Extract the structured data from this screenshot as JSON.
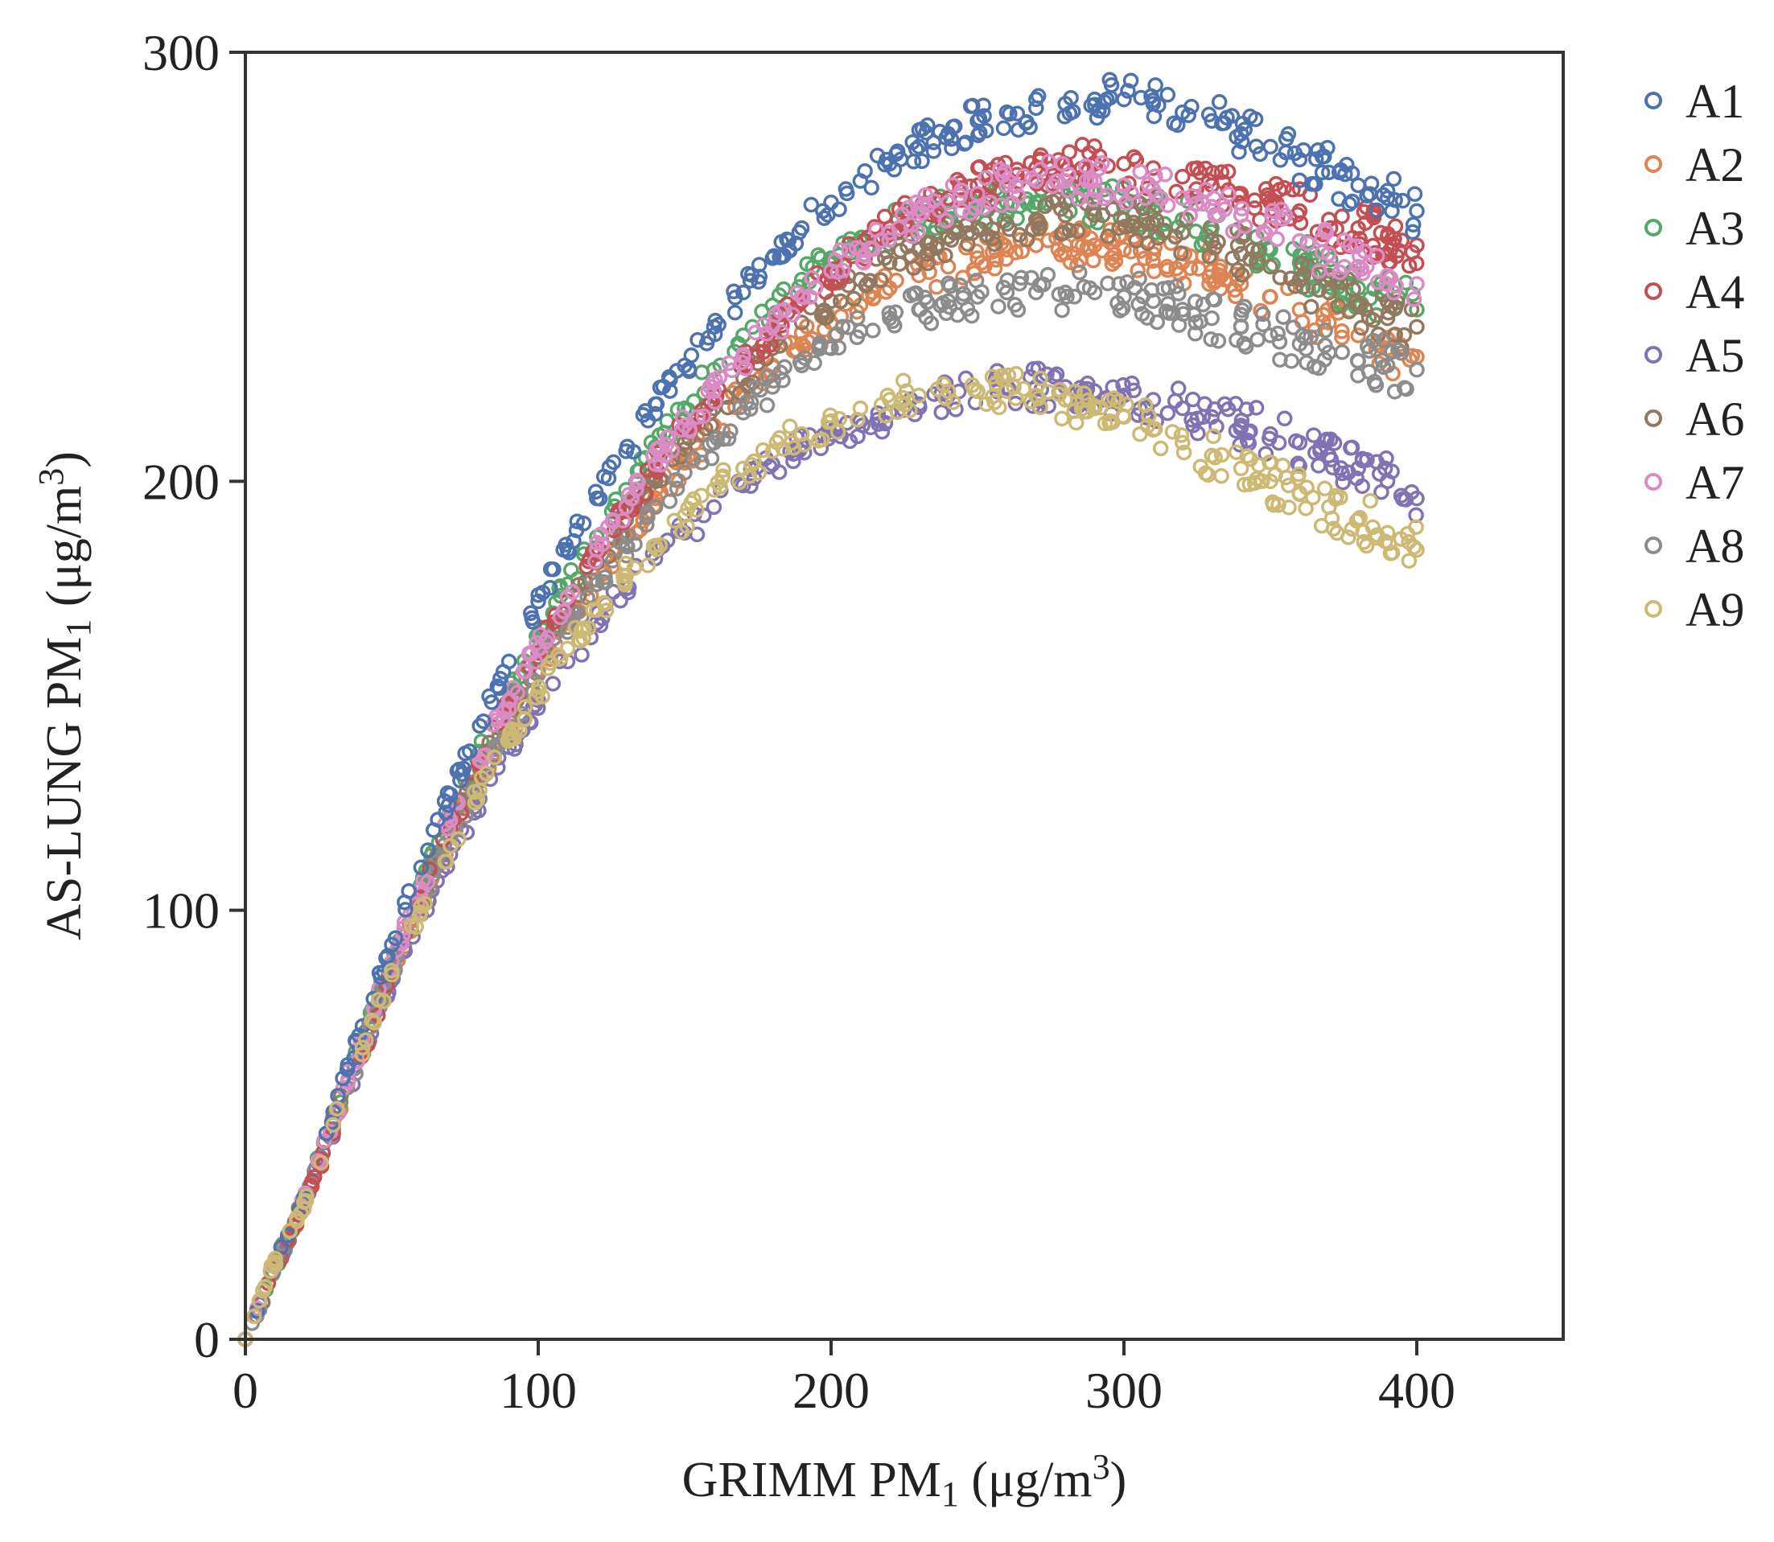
{
  "chart_data": {
    "type": "scatter",
    "title": "",
    "xlabel": {
      "prefix": "GRIMM PM",
      "sub": "1",
      "unit_prefix": " (μg/m",
      "sup": "3",
      "unit_suffix": ")"
    },
    "ylabel": {
      "prefix": "AS-LUNG PM",
      "sub": "1",
      "unit_prefix": " (μg/m",
      "sup": "3",
      "unit_suffix": ")"
    },
    "xlim": [
      0,
      450
    ],
    "ylim": [
      0,
      300
    ],
    "xticks": [
      0,
      100,
      200,
      300,
      400
    ],
    "yticks": [
      0,
      100,
      200,
      300
    ],
    "marker": "open-circle",
    "legend_position": "outside-right",
    "series": [
      {
        "name": "A1",
        "color": "#4c72b0",
        "x": [
          0,
          10,
          20,
          30,
          40,
          50,
          60,
          70,
          80,
          90,
          100,
          110,
          120,
          130,
          140,
          150,
          160,
          170,
          180,
          190,
          200,
          210,
          220,
          230,
          240,
          250,
          260,
          270,
          280,
          290,
          300,
          310,
          320,
          330,
          340,
          350,
          360,
          370,
          380,
          390,
          400
        ],
        "y": [
          0,
          18,
          33,
          53,
          73,
          92,
          110,
          127,
          143,
          158,
          172,
          184,
          196,
          207,
          218,
          227,
          236,
          244,
          252,
          259,
          265,
          270,
          274,
          278,
          281,
          284,
          286,
          287,
          288,
          289,
          289,
          288,
          286,
          284,
          281,
          278,
          275,
          272,
          269,
          266,
          263
        ]
      },
      {
        "name": "A2",
        "color": "#dd8452",
        "x": [
          0,
          10,
          20,
          30,
          40,
          50,
          60,
          70,
          80,
          90,
          100,
          110,
          120,
          130,
          140,
          150,
          160,
          170,
          180,
          190,
          200,
          210,
          220,
          230,
          240,
          250,
          260,
          270,
          280,
          290,
          300,
          310,
          320,
          330,
          340,
          350,
          360,
          370,
          380,
          390,
          400
        ],
        "y": [
          0,
          17,
          32,
          50,
          69,
          86,
          102,
          117,
          131,
          144,
          156,
          167,
          177,
          187,
          196,
          205,
          213,
          220,
          227,
          232,
          237,
          241,
          245,
          248,
          250,
          252,
          254,
          255,
          255,
          255,
          254,
          253,
          251,
          249,
          246,
          243,
          240,
          237,
          234,
          231,
          229
        ]
      },
      {
        "name": "A3",
        "color": "#55a868",
        "x": [
          0,
          10,
          20,
          30,
          40,
          50,
          60,
          70,
          80,
          90,
          100,
          110,
          120,
          130,
          140,
          150,
          160,
          170,
          180,
          190,
          200,
          210,
          220,
          230,
          240,
          250,
          260,
          270,
          280,
          290,
          300,
          310,
          320,
          330,
          340,
          350,
          360,
          370,
          380,
          390,
          400
        ],
        "y": [
          0,
          17,
          32,
          51,
          70,
          88,
          106,
          122,
          137,
          151,
          164,
          176,
          187,
          198,
          208,
          217,
          226,
          234,
          241,
          247,
          252,
          256,
          259,
          261,
          263,
          264,
          265,
          265,
          265,
          265,
          264,
          263,
          261,
          259,
          257,
          254,
          251,
          248,
          245,
          242,
          240
        ]
      },
      {
        "name": "A4",
        "color": "#c44e52",
        "x": [
          0,
          10,
          20,
          30,
          40,
          50,
          60,
          70,
          80,
          90,
          100,
          110,
          120,
          130,
          140,
          150,
          160,
          170,
          180,
          190,
          200,
          210,
          220,
          230,
          240,
          250,
          260,
          270,
          280,
          290,
          300,
          310,
          320,
          330,
          340,
          350,
          360,
          370,
          380,
          390,
          400
        ],
        "y": [
          0,
          17,
          31,
          48,
          67,
          86,
          103,
          119,
          134,
          148,
          160,
          172,
          183,
          193,
          203,
          212,
          220,
          228,
          235,
          242,
          248,
          254,
          259,
          263,
          266,
          269,
          271,
          273,
          274,
          274,
          274,
          273,
          271,
          269,
          267,
          265,
          263,
          261,
          259,
          257,
          255
        ]
      },
      {
        "name": "A5",
        "color": "#8172b3",
        "x": [
          0,
          10,
          20,
          30,
          40,
          50,
          60,
          70,
          80,
          90,
          100,
          110,
          120,
          130,
          140,
          150,
          160,
          170,
          180,
          190,
          200,
          210,
          220,
          230,
          240,
          250,
          260,
          270,
          280,
          290,
          300,
          310,
          320,
          330,
          340,
          350,
          360,
          370,
          380,
          390,
          400
        ],
        "y": [
          0,
          17,
          31,
          49,
          67,
          84,
          99,
          113,
          126,
          138,
          149,
          158,
          167,
          175,
          182,
          188,
          194,
          199,
          204,
          208,
          211,
          214,
          216,
          218,
          220,
          221,
          222,
          222,
          222,
          221,
          220,
          219,
          217,
          215,
          213,
          211,
          209,
          206,
          203,
          200,
          196
        ]
      },
      {
        "name": "A6",
        "color": "#937860",
        "x": [
          0,
          10,
          20,
          30,
          40,
          50,
          60,
          70,
          80,
          90,
          100,
          110,
          120,
          130,
          140,
          150,
          160,
          170,
          180,
          190,
          200,
          210,
          220,
          230,
          240,
          250,
          260,
          270,
          280,
          290,
          300,
          310,
          320,
          330,
          340,
          350,
          360,
          370,
          380,
          390,
          400
        ],
        "y": [
          0,
          17,
          32,
          50,
          69,
          87,
          103,
          119,
          133,
          147,
          159,
          170,
          181,
          191,
          200,
          209,
          217,
          224,
          231,
          237,
          242,
          247,
          251,
          254,
          257,
          259,
          260,
          261,
          262,
          262,
          261,
          260,
          258,
          256,
          253,
          250,
          247,
          244,
          241,
          238,
          236
        ]
      },
      {
        "name": "A7",
        "color": "#da8bc3",
        "x": [
          0,
          10,
          20,
          30,
          40,
          50,
          60,
          70,
          80,
          90,
          100,
          110,
          120,
          130,
          140,
          150,
          160,
          170,
          180,
          190,
          200,
          210,
          220,
          230,
          240,
          250,
          260,
          270,
          280,
          290,
          300,
          310,
          320,
          330,
          340,
          350,
          360,
          370,
          380,
          390,
          400
        ],
        "y": [
          0,
          17,
          32,
          51,
          70,
          88,
          105,
          121,
          135,
          149,
          161,
          173,
          184,
          194,
          204,
          213,
          221,
          229,
          236,
          243,
          249,
          254,
          258,
          262,
          265,
          267,
          269,
          270,
          270,
          270,
          269,
          268,
          266,
          264,
          262,
          259,
          256,
          253,
          250,
          248,
          246
        ]
      },
      {
        "name": "A8",
        "color": "#8c8c8c",
        "x": [
          0,
          10,
          20,
          30,
          40,
          50,
          60,
          70,
          80,
          90,
          100,
          110,
          120,
          130,
          140,
          150,
          160,
          170,
          180,
          190,
          200,
          210,
          220,
          230,
          240,
          250,
          260,
          270,
          280,
          290,
          300,
          310,
          320,
          330,
          340,
          350,
          360,
          370,
          380,
          390,
          400
        ],
        "y": [
          0,
          17,
          32,
          50,
          68,
          86,
          102,
          117,
          130,
          143,
          155,
          166,
          176,
          185,
          194,
          202,
          209,
          216,
          222,
          227,
          231,
          235,
          238,
          240,
          242,
          243,
          244,
          244,
          244,
          244,
          243,
          242,
          240,
          238,
          236,
          234,
          232,
          230,
          228,
          227,
          226
        ]
      },
      {
        "name": "A9",
        "color": "#ccb974",
        "x": [
          0,
          10,
          20,
          30,
          40,
          50,
          60,
          70,
          80,
          90,
          100,
          110,
          120,
          130,
          140,
          150,
          160,
          170,
          180,
          190,
          200,
          210,
          220,
          230,
          240,
          250,
          260,
          270,
          280,
          290,
          300,
          310,
          320,
          330,
          340,
          350,
          360,
          370,
          380,
          390,
          400
        ],
        "y": [
          0,
          18,
          32,
          50,
          68,
          85,
          101,
          115,
          128,
          140,
          151,
          161,
          170,
          178,
          185,
          192,
          198,
          203,
          207,
          211,
          214,
          217,
          219,
          220,
          221,
          221,
          221,
          220,
          219,
          217,
          215,
          212,
          209,
          206,
          203,
          200,
          197,
          194,
          191,
          188,
          184
        ]
      }
    ]
  }
}
